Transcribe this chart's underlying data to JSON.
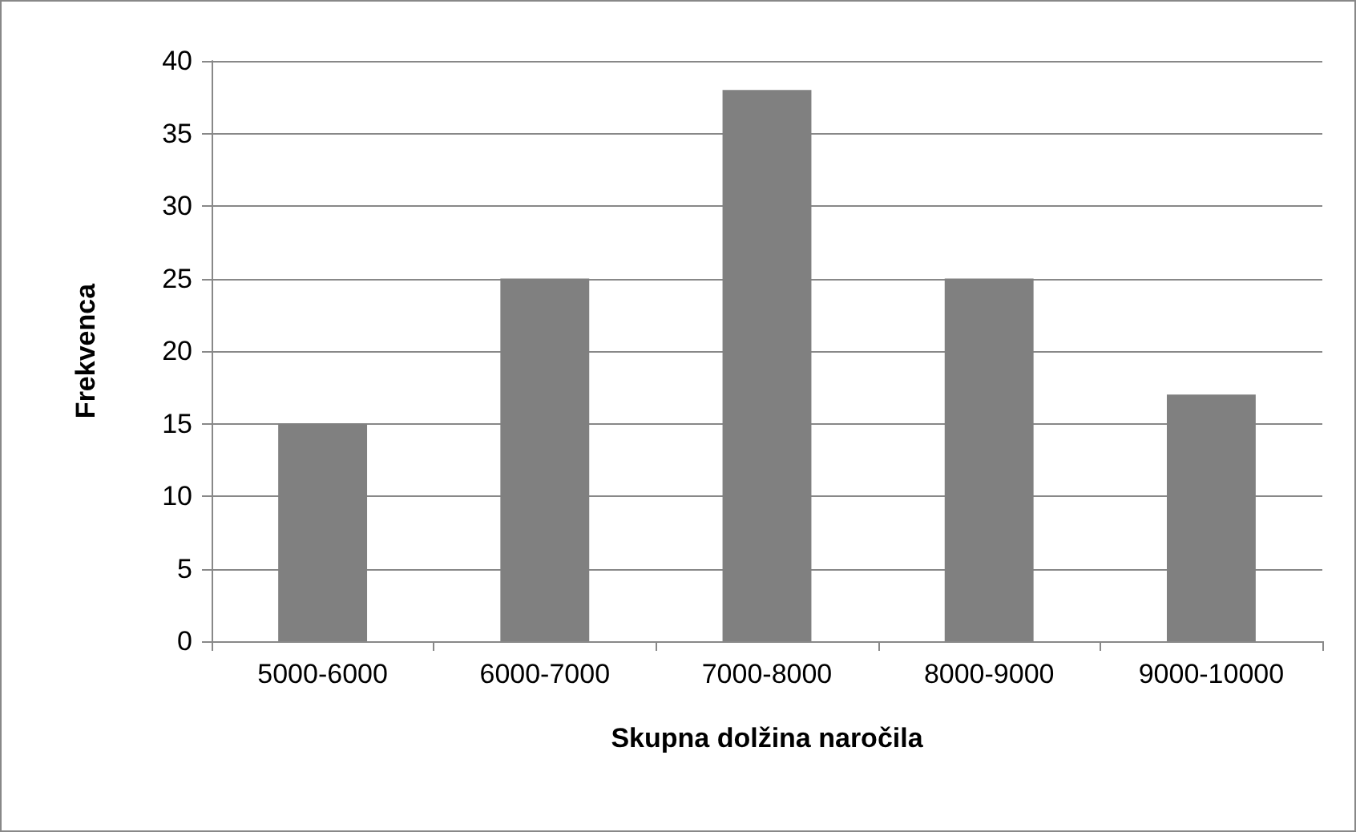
{
  "chart_data": {
    "type": "bar",
    "xlabel": "Skupna dolžina naročila",
    "ylabel": "Frekvenca",
    "categories": [
      "5000-6000",
      "6000-7000",
      "7000-8000",
      "8000-9000",
      "9000-10000"
    ],
    "values": [
      15,
      25,
      38,
      25,
      17
    ],
    "color": "#808080",
    "ylim": [
      0,
      40
    ],
    "yticks": [
      0,
      5,
      10,
      15,
      20,
      25,
      30,
      35,
      40
    ],
    "grid": "y"
  }
}
